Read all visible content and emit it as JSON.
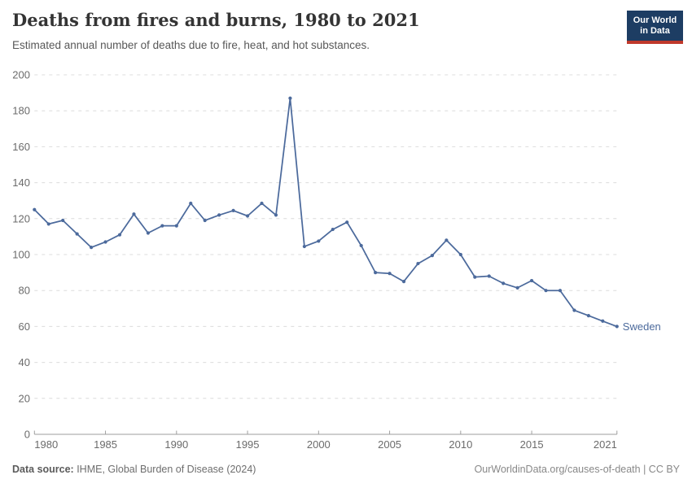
{
  "header": {
    "title": "Deaths from fires and burns, 1980 to 2021",
    "subtitle": "Estimated annual number of deaths due to fire, heat, and hot substances.",
    "logo": {
      "line1": "Our World",
      "line2": "in Data",
      "bg_color": "#1d3d63",
      "accent_color": "#c0392b"
    }
  },
  "chart_data": {
    "type": "line",
    "title": "Deaths from fires and burns, 1980 to 2021",
    "subtitle": "Estimated annual number of deaths due to fire, heat, and hot substances.",
    "x": [
      1980,
      1981,
      1982,
      1983,
      1984,
      1985,
      1986,
      1987,
      1988,
      1989,
      1990,
      1991,
      1992,
      1993,
      1994,
      1995,
      1996,
      1997,
      1998,
      1999,
      2000,
      2001,
      2002,
      2003,
      2004,
      2005,
      2006,
      2007,
      2008,
      2009,
      2010,
      2011,
      2012,
      2013,
      2014,
      2015,
      2016,
      2017,
      2018,
      2019,
      2020,
      2021
    ],
    "series": [
      {
        "name": "Sweden",
        "color": "#4c6a9c",
        "values": [
          125,
          117,
          119,
          111.5,
          104,
          107,
          111,
          122.5,
          112,
          116,
          116,
          128.5,
          119,
          122,
          124.5,
          121.5,
          128.5,
          122,
          187,
          104.5,
          107.5,
          114,
          118,
          105,
          90,
          89.5,
          85,
          95,
          99.5,
          108,
          100,
          87.5,
          88,
          84,
          81.5,
          85.5,
          80,
          80,
          69,
          66,
          63,
          60
        ]
      }
    ],
    "entity_label": "Sweden",
    "xlabel": "",
    "ylabel": "",
    "xlim": [
      1980,
      2021
    ],
    "ylim": [
      0,
      200
    ],
    "xticks": [
      1980,
      1985,
      1990,
      1995,
      2000,
      2005,
      2010,
      2015,
      2021
    ],
    "yticks": [
      0,
      20,
      40,
      60,
      80,
      100,
      120,
      140,
      160,
      180,
      200
    ],
    "grid": "horizontal-dashed",
    "legend_position": "end-of-line-label"
  },
  "footer": {
    "source_label": "Data source:",
    "source_value": " IHME, Global Burden of Disease (2024)",
    "credit": "OurWorldinData.org/causes-of-death | CC BY"
  },
  "colors": {
    "series_blue": "#4c6a9c",
    "gridline": "#dcdcdc",
    "axis": "#9e9e9e",
    "tick_text": "#6b6b6b",
    "title_text": "#343434",
    "subtitle_text": "#585858",
    "logo_bg": "#1d3d63",
    "logo_accent": "#c0392b"
  }
}
